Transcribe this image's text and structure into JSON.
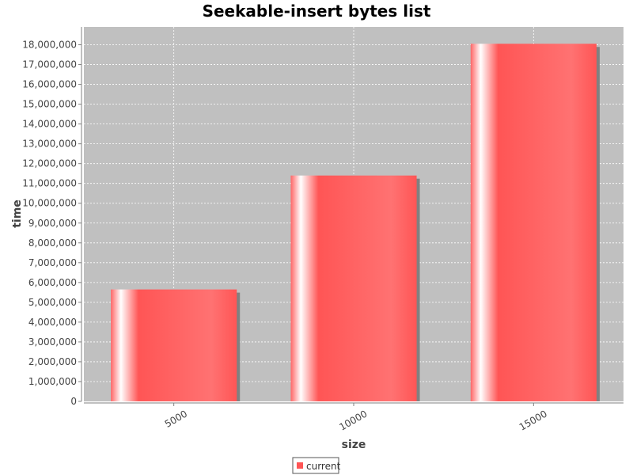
{
  "chart_data": {
    "type": "bar",
    "title": "Seekable-insert bytes list",
    "xlabel": "size",
    "ylabel": "time",
    "categories": [
      "5000",
      "10000",
      "15000"
    ],
    "series": [
      {
        "name": "current",
        "values": [
          5650000,
          11400000,
          18050000
        ],
        "color": "#ff5555"
      }
    ],
    "ylim": [
      0,
      18900000
    ],
    "yticks": [
      0,
      1000000,
      2000000,
      3000000,
      4000000,
      5000000,
      6000000,
      7000000,
      8000000,
      9000000,
      10000000,
      11000000,
      12000000,
      13000000,
      14000000,
      15000000,
      16000000,
      17000000,
      18000000
    ],
    "ytick_labels": [
      "0",
      "1,000,000",
      "2,000,000",
      "3,000,000",
      "4,000,000",
      "5,000,000",
      "6,000,000",
      "7,000,000",
      "8,000,000",
      "9,000,000",
      "10,000,000",
      "11,000,000",
      "12,000,000",
      "13,000,000",
      "14,000,000",
      "15,000,000",
      "16,000,000",
      "17,000,000",
      "18,000,000"
    ],
    "grid": true,
    "legend_position": "bottom-center",
    "plot_background": "#c0c0c0"
  }
}
